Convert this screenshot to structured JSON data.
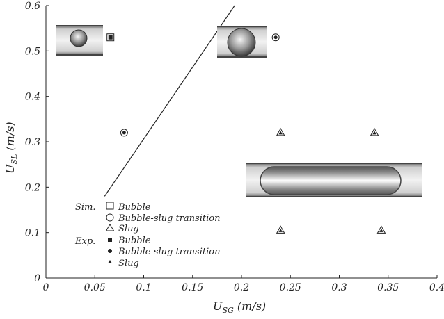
{
  "chart_data": {
    "type": "scatter",
    "title": "",
    "xlabel": {
      "main": "U",
      "sub": "SG",
      "unit": " (m/s)"
    },
    "ylabel": {
      "main": "U",
      "sub": "SL",
      "unit": " (m/s)"
    },
    "xlim": [
      0,
      0.4
    ],
    "ylim": [
      0,
      0.6
    ],
    "xticks": [
      "0",
      "0.05",
      "0.1",
      "0.15",
      "0.2",
      "0.25",
      "0.3",
      "0.35",
      "0.4"
    ],
    "yticks": [
      "0",
      "0.1",
      "0.2",
      "0.3",
      "0.4",
      "0.5",
      "0.6"
    ],
    "grid": false,
    "legend": {
      "placement": "bottom-left",
      "groups": [
        {
          "label": "Sim.",
          "entries": [
            {
              "marker": "open-square",
              "label": "Bubble"
            },
            {
              "marker": "open-circle",
              "label": "Bubble-slug transition"
            },
            {
              "marker": "open-triangle",
              "label": "Slug"
            }
          ]
        },
        {
          "label": "Exp.",
          "entries": [
            {
              "marker": "filled-square",
              "label": "Bubble"
            },
            {
              "marker": "filled-circle",
              "label": "Bubble-slug transition"
            },
            {
              "marker": "filled-triangle",
              "label": "Slug"
            }
          ]
        }
      ]
    },
    "series": [
      {
        "marker": "square",
        "points": [
          {
            "x": 0.066,
            "y": 0.53
          }
        ]
      },
      {
        "marker": "circle",
        "points": [
          {
            "x": 0.08,
            "y": 0.32
          },
          {
            "x": 0.235,
            "y": 0.53
          }
        ]
      },
      {
        "marker": "triangle",
        "points": [
          {
            "x": 0.24,
            "y": 0.32
          },
          {
            "x": 0.24,
            "y": 0.105
          },
          {
            "x": 0.336,
            "y": 0.32
          },
          {
            "x": 0.343,
            "y": 0.105
          }
        ]
      }
    ],
    "transition_line": {
      "points": [
        {
          "x": 0.06,
          "y": 0.18
        },
        {
          "x": 0.193,
          "y": 0.6
        }
      ]
    },
    "inset_images": [
      {
        "depicts": "small-bubble-in-channel"
      },
      {
        "depicts": "large-bubble-in-channel"
      },
      {
        "depicts": "elongated-slug-in-channel"
      }
    ],
    "colors": {
      "axis": "#222222",
      "line": "#222222",
      "marker": "#222222"
    }
  }
}
